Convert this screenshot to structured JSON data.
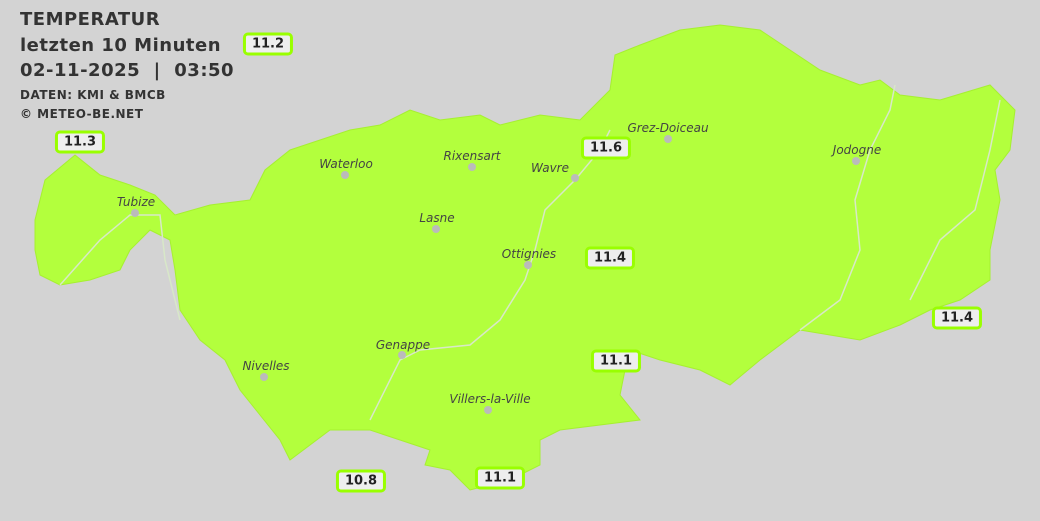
{
  "header": {
    "title": "TEMPERATUR",
    "subtitle": "letzten 10 Minuten",
    "datetime": "02-11-2025  |  03:50",
    "source": "DATEN: KMI & BMCB",
    "copyright": "© METEO-BE.NET"
  },
  "colors": {
    "background": "#d3d3d3",
    "region": "#b3ff3d",
    "label_border": "#99ff00"
  },
  "cities": [
    {
      "name": "Grez-Doiceau"
    },
    {
      "name": "Waterloo"
    },
    {
      "name": "Rixensart"
    },
    {
      "name": "Wavre"
    },
    {
      "name": "Jodogne"
    },
    {
      "name": "Tubize"
    },
    {
      "name": "Lasne"
    },
    {
      "name": "Ottignies"
    },
    {
      "name": "Genappe"
    },
    {
      "name": "Nivelles"
    },
    {
      "name": "Villers-la-Ville"
    }
  ],
  "temperatures": [
    {
      "value": "11.2"
    },
    {
      "value": "11.3"
    },
    {
      "value": "11.6"
    },
    {
      "value": "11.4"
    },
    {
      "value": "11.4"
    },
    {
      "value": "11.1"
    },
    {
      "value": "10.8"
    },
    {
      "value": "11.1"
    }
  ]
}
